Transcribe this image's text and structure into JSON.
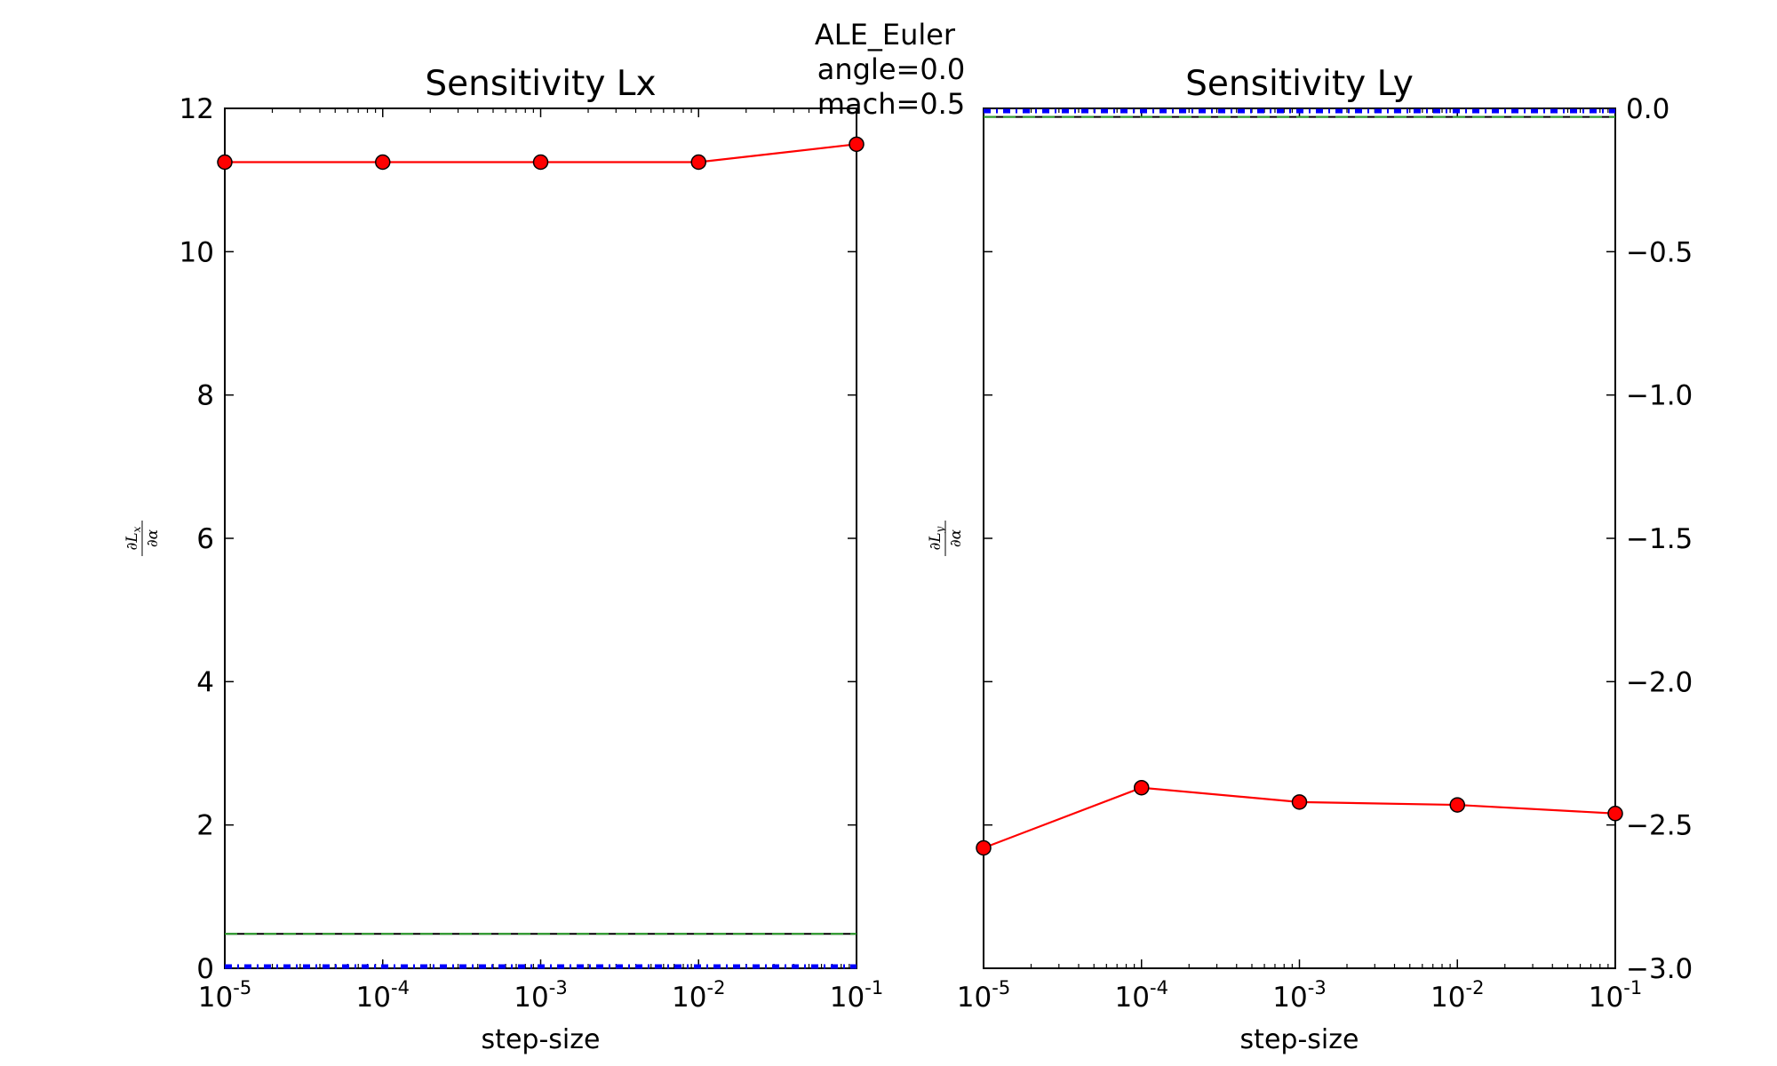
{
  "figure": {
    "suptitle_lines": [
      "ALE_Euler",
      "angle=0.0",
      "mach=0.5"
    ]
  },
  "chart_data": [
    {
      "type": "line",
      "title": "Sensitivity Lx",
      "xlabel": "step-size",
      "ylabel": "∂Lx/∂α",
      "ylabel_num": "∂L",
      "ylabel_sub": "x",
      "ylabel_den": "∂α",
      "xscale": "log",
      "xlim": [
        1e-05,
        0.1
      ],
      "ylim": [
        0,
        12
      ],
      "yaxis_side": "left",
      "xticks": [
        {
          "base": "10",
          "exp": "-5",
          "value": 1e-05
        },
        {
          "base": "10",
          "exp": "-4",
          "value": 0.0001
        },
        {
          "base": "10",
          "exp": "-3",
          "value": 0.001
        },
        {
          "base": "10",
          "exp": "-2",
          "value": 0.01
        },
        {
          "base": "10",
          "exp": "-1",
          "value": 0.1
        }
      ],
      "yticks": [
        {
          "label": "0",
          "value": 0
        },
        {
          "label": "2",
          "value": 2
        },
        {
          "label": "4",
          "value": 4
        },
        {
          "label": "6",
          "value": 6
        },
        {
          "label": "8",
          "value": 8
        },
        {
          "label": "10",
          "value": 10
        },
        {
          "label": "12",
          "value": 12
        }
      ],
      "series": [
        {
          "style": "line-marker",
          "color": "#ff0000",
          "x": [
            1e-05,
            0.0001,
            0.001,
            0.01,
            0.1
          ],
          "y": [
            11.25,
            11.25,
            11.25,
            11.25,
            11.5
          ]
        },
        {
          "style": "hline",
          "color": "#000000",
          "y": 0.48
        },
        {
          "style": "hline-dashed",
          "color": "#2ca02c",
          "y": 0.48
        },
        {
          "style": "hline-dashdot",
          "color": "#0000ff",
          "y": 0.0
        }
      ]
    },
    {
      "type": "line",
      "title": "Sensitivity Ly",
      "xlabel": "step-size",
      "ylabel": "∂Ly/∂α",
      "ylabel_num": "∂L",
      "ylabel_sub": "y",
      "ylabel_den": "∂α",
      "xscale": "log",
      "xlim": [
        1e-05,
        0.1
      ],
      "ylim": [
        -3.0,
        0.0
      ],
      "yaxis_side": "right",
      "xticks": [
        {
          "base": "10",
          "exp": "-5",
          "value": 1e-05
        },
        {
          "base": "10",
          "exp": "-4",
          "value": 0.0001
        },
        {
          "base": "10",
          "exp": "-3",
          "value": 0.001
        },
        {
          "base": "10",
          "exp": "-2",
          "value": 0.01
        },
        {
          "base": "10",
          "exp": "-1",
          "value": 0.1
        }
      ],
      "yticks": [
        {
          "label": "−3.0",
          "value": -3.0
        },
        {
          "label": "−2.5",
          "value": -2.5
        },
        {
          "label": "−2.0",
          "value": -2.0
        },
        {
          "label": "−1.5",
          "value": -1.5
        },
        {
          "label": "−1.0",
          "value": -1.0
        },
        {
          "label": "−0.5",
          "value": -0.5
        },
        {
          "label": "0.0",
          "value": 0.0
        }
      ],
      "series": [
        {
          "style": "line-marker",
          "color": "#ff0000",
          "x": [
            1e-05,
            0.0001,
            0.001,
            0.01,
            0.1
          ],
          "y": [
            -2.58,
            -2.37,
            -2.42,
            -2.43,
            -2.46
          ]
        },
        {
          "style": "hline",
          "color": "#000000",
          "y": -0.03
        },
        {
          "style": "hline-dashed",
          "color": "#2ca02c",
          "y": -0.03
        },
        {
          "style": "hline-dashdot",
          "color": "#0000ff",
          "y": 0.0
        }
      ]
    }
  ]
}
